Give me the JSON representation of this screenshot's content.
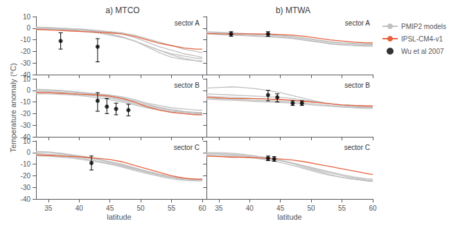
{
  "chart_data": [
    {
      "type": "line",
      "title": "a) MTCO",
      "annotation": "sector A",
      "tick_labels": "y",
      "grid": false,
      "x": [
        33,
        35,
        37,
        39,
        41,
        43,
        45,
        47,
        49,
        51,
        53,
        55,
        57,
        59,
        60
      ],
      "xlim": [
        33,
        60
      ],
      "ylim": [
        -40,
        10
      ],
      "xticks": [
        35,
        40,
        45,
        50,
        55,
        60
      ],
      "yticks": [
        -40,
        -30,
        -20,
        -10,
        0,
        10
      ],
      "series": [
        {
          "name": "PMIP2 models",
          "color": "#c0c0c0",
          "values": [
            -0.5,
            -0.5,
            -1,
            -1.5,
            -2,
            -2.5,
            -3,
            -4,
            -6,
            -9,
            -12,
            -15,
            -18,
            -20,
            -21
          ]
        },
        {
          "name": "PMIP2 models",
          "color": "#c0c0c0",
          "values": [
            0.5,
            0.5,
            0,
            -0.5,
            -1,
            -2,
            -3,
            -5,
            -8,
            -12,
            -16,
            -19,
            -22,
            -24,
            -25
          ]
        },
        {
          "name": "PMIP2 models",
          "color": "#c0c0c0",
          "values": [
            -1,
            -1,
            -1.5,
            -2,
            -3,
            -4,
            -6,
            -8,
            -11,
            -15,
            -19,
            -23,
            -26,
            -28,
            -29
          ]
        },
        {
          "name": "PMIP2 models",
          "color": "#c0c0c0",
          "values": [
            0,
            0,
            -0.5,
            -1,
            -2,
            -3.5,
            -5,
            -7.5,
            -11,
            -16,
            -21,
            -25,
            -27,
            -28,
            -28
          ]
        },
        {
          "name": "PMIP2 models",
          "color": "#c0c0c0",
          "values": [
            1,
            0.5,
            0,
            -0.5,
            -1.5,
            -3,
            -5,
            -7.5,
            -11,
            -15,
            -19,
            -22,
            -24,
            -26,
            -26
          ]
        },
        {
          "name": "IPSL-CM4-v1",
          "color": "#e8603c",
          "values": [
            -1,
            -1.5,
            -2,
            -2.5,
            -3,
            -3.5,
            -4,
            -5,
            -7,
            -10,
            -13,
            -15,
            -17,
            -18,
            -18
          ]
        },
        {
          "name": "Wu et al 2007",
          "type": "scatter",
          "marker": "circle",
          "color": "#000000",
          "x": [
            37,
            43
          ],
          "values": [
            -11,
            -16
          ],
          "error_lo": [
            7,
            13
          ],
          "error_hi": [
            7,
            7
          ]
        }
      ]
    },
    {
      "type": "line",
      "title": "b) MTWA",
      "annotation": "sector A",
      "tick_labels": false,
      "grid": false,
      "legend": "upper right",
      "x": [
        33,
        35,
        37,
        39,
        41,
        43,
        45,
        47,
        49,
        51,
        53,
        55,
        57,
        59,
        60
      ],
      "xlim": [
        33,
        60
      ],
      "ylim": [
        -40,
        10
      ],
      "xticks": [
        35,
        40,
        45,
        50,
        55,
        60
      ],
      "yticks": [
        -40,
        -30,
        -20,
        -10,
        0,
        10
      ],
      "series": [
        {
          "name": "PMIP2 models",
          "color": "#c0c0c0",
          "values": [
            -3.5,
            -4,
            -4.5,
            -5,
            -5.5,
            -6,
            -6.5,
            -7.5,
            -9,
            -10.5,
            -12,
            -13,
            -13.5,
            -14,
            -14
          ]
        },
        {
          "name": "PMIP2 models",
          "color": "#c0c0c0",
          "values": [
            -4.5,
            -5,
            -5.5,
            -6,
            -6.5,
            -7,
            -7.5,
            -8.5,
            -10,
            -11.5,
            -13,
            -14,
            -14.5,
            -15,
            -15
          ]
        },
        {
          "name": "PMIP2 models",
          "color": "#c0c0c0",
          "values": [
            -5,
            -5.5,
            -6,
            -6.5,
            -7,
            -7.5,
            -8,
            -9,
            -10.5,
            -12,
            -13.5,
            -14.5,
            -15,
            -15.5,
            -15.5
          ]
        },
        {
          "name": "PMIP2 models",
          "color": "#c0c0c0",
          "values": [
            -3,
            -3.5,
            -4,
            -4.5,
            -5,
            -5.5,
            -6,
            -7,
            -8.5,
            -10,
            -11.5,
            -12.5,
            -13,
            -13.5,
            -13.5
          ]
        },
        {
          "name": "IPSL-CM4-v1",
          "color": "#e8603c",
          "values": [
            -4.5,
            -4.8,
            -5,
            -5,
            -5,
            -5,
            -5.5,
            -6,
            -7,
            -8.5,
            -10,
            -11,
            -12,
            -12.5,
            -12.5
          ]
        },
        {
          "name": "Wu et al 2007",
          "type": "scatter",
          "marker": "circle",
          "color": "#000000",
          "x": [
            37,
            43
          ],
          "values": [
            -5,
            -5
          ],
          "error_lo": [
            2,
            2
          ],
          "error_hi": [
            2,
            2
          ]
        }
      ]
    },
    {
      "type": "line",
      "annotation": "sector B",
      "ylabel": "Temperature anomaly (°C)",
      "tick_labels": "y",
      "grid": false,
      "x": [
        33,
        35,
        37,
        39,
        41,
        43,
        45,
        47,
        49,
        51,
        53,
        55,
        57,
        59,
        60
      ],
      "xlim": [
        33,
        60
      ],
      "ylim": [
        -40,
        10
      ],
      "xticks": [
        35,
        40,
        45,
        50,
        55,
        60
      ],
      "yticks": [
        -40,
        -30,
        -20,
        -10,
        0,
        10
      ],
      "series": [
        {
          "name": "PMIP2 models",
          "color": "#c0c0c0",
          "values": [
            -1,
            -1,
            -1.5,
            -2,
            -2.5,
            -3,
            -4,
            -5.5,
            -8,
            -11,
            -13,
            -15,
            -16,
            -17,
            -17
          ]
        },
        {
          "name": "PMIP2 models",
          "color": "#c0c0c0",
          "values": [
            -2,
            -2,
            -2.5,
            -3,
            -4,
            -5,
            -6.5,
            -9,
            -11.5,
            -14,
            -16,
            -18,
            -19,
            -20,
            -20
          ]
        },
        {
          "name": "PMIP2 models",
          "color": "#c0c0c0",
          "values": [
            0,
            0,
            -0.5,
            -1,
            -2,
            -3,
            -4.5,
            -6.5,
            -9,
            -12,
            -14.5,
            -16.5,
            -18,
            -19,
            -19
          ]
        },
        {
          "name": "PMIP2 models",
          "color": "#c0c0c0",
          "values": [
            -3,
            -3,
            -3.5,
            -4,
            -5,
            -6.5,
            -8,
            -10,
            -12.5,
            -15,
            -17,
            -19,
            -20,
            -21,
            -21
          ]
        },
        {
          "name": "PMIP2 models",
          "color": "#c0c0c0",
          "values": [
            1,
            0.5,
            0,
            -1,
            -2.5,
            -4,
            -5.5,
            -8,
            -10.5,
            -13,
            -15,
            -17,
            -18.5,
            -19.5,
            -19.5
          ]
        },
        {
          "name": "IPSL-CM4-v1",
          "color": "#e8603c",
          "values": [
            -2,
            -2,
            -2.5,
            -3,
            -3.5,
            -4,
            -5,
            -7,
            -10,
            -14,
            -17,
            -19,
            -20,
            -21,
            -21
          ]
        },
        {
          "name": "Wu et al 2007",
          "type": "scatter",
          "marker": "circle",
          "color": "#000000",
          "x": [
            43,
            44.5,
            46,
            48
          ],
          "values": [
            -9,
            -14,
            -16,
            -17
          ],
          "error_lo": [
            9,
            6,
            5,
            5
          ],
          "error_hi": [
            7,
            7,
            5,
            5
          ]
        }
      ]
    },
    {
      "type": "line",
      "annotation": "sector B",
      "tick_labels": false,
      "grid": false,
      "x": [
        33,
        35,
        37,
        39,
        41,
        43,
        45,
        47,
        49,
        51,
        53,
        55,
        57,
        59,
        60
      ],
      "xlim": [
        33,
        60
      ],
      "ylim": [
        -40,
        10
      ],
      "xticks": [
        35,
        40,
        45,
        50,
        55,
        60
      ],
      "yticks": [
        -40,
        -30,
        -20,
        -10,
        0,
        10
      ],
      "series": [
        {
          "name": "PMIP2 models",
          "color": "#c0c0c0",
          "values": [
            -5,
            -5.5,
            -6,
            -6.5,
            -7,
            -7.5,
            -8,
            -8.5,
            -9.5,
            -10.5,
            -11.5,
            -12.5,
            -13,
            -13.5,
            -13.5
          ]
        },
        {
          "name": "PMIP2 models",
          "color": "#c0c0c0",
          "values": [
            -3,
            -3.5,
            -4,
            -4.5,
            -5,
            -5.5,
            -6,
            -7,
            -8.5,
            -10,
            -11.5,
            -12.5,
            -13,
            -13.5,
            -13.5
          ]
        },
        {
          "name": "PMIP2 models",
          "color": "#c0c0c0",
          "values": [
            2,
            2.5,
            3,
            2.5,
            1.5,
            0,
            -2,
            -4.5,
            -7,
            -9.5,
            -11.5,
            -13,
            -14,
            -14.5,
            -14.5
          ]
        },
        {
          "name": "PMIP2 models",
          "color": "#c0c0c0",
          "values": [
            -6.5,
            -7,
            -7.5,
            -8,
            -8.5,
            -9,
            -9.5,
            -10,
            -11,
            -12,
            -13,
            -14,
            -14.5,
            -15,
            -15
          ]
        },
        {
          "name": "PMIP2 models",
          "color": "#c0c0c0",
          "values": [
            -7.5,
            -8,
            -8.5,
            -9,
            -9.5,
            -10,
            -10.5,
            -11,
            -12,
            -13,
            -13.5,
            -14.5,
            -15,
            -15.5,
            -15.5
          ]
        },
        {
          "name": "IPSL-CM4-v1",
          "color": "#e8603c",
          "values": [
            -6,
            -6.5,
            -7,
            -7,
            -7,
            -7.5,
            -8,
            -8.5,
            -9.5,
            -10.5,
            -11.5,
            -12.5,
            -13,
            -13.5,
            -13.5
          ]
        },
        {
          "name": "Wu et al 2007",
          "type": "scatter",
          "marker": "circle",
          "color": "#000000",
          "x": [
            43,
            44.5,
            47,
            48.5
          ],
          "values": [
            -4,
            -6,
            -11,
            -11
          ],
          "error_lo": [
            5,
            4,
            2,
            2
          ],
          "error_hi": [
            4,
            3,
            2,
            2
          ]
        }
      ]
    },
    {
      "type": "line",
      "annotation": "sector C",
      "xlabel": "latitude",
      "grid": false,
      "x": [
        33,
        35,
        37,
        39,
        41,
        43,
        45,
        47,
        49,
        51,
        53,
        55,
        57,
        59,
        60
      ],
      "xlim": [
        33,
        60
      ],
      "ylim": [
        -40,
        10
      ],
      "xticks": [
        35,
        40,
        45,
        50,
        55,
        60
      ],
      "yticks": [
        -40,
        -30,
        -20,
        -10,
        0,
        10
      ],
      "series": [
        {
          "name": "PMIP2 models",
          "color": "#c0c0c0",
          "values": [
            -1,
            -1.5,
            -2,
            -3,
            -4.5,
            -6,
            -8,
            -10,
            -13,
            -16,
            -18.5,
            -21,
            -22.5,
            -23,
            -23
          ]
        },
        {
          "name": "PMIP2 models",
          "color": "#c0c0c0",
          "values": [
            -2,
            -2,
            -3,
            -4,
            -5.5,
            -7.5,
            -9.5,
            -12,
            -14.5,
            -17,
            -19,
            -21,
            -22.5,
            -23,
            -23
          ]
        },
        {
          "name": "PMIP2 models",
          "color": "#c0c0c0",
          "values": [
            0,
            0,
            -1,
            -2.5,
            -4,
            -6,
            -8.5,
            -11,
            -14,
            -17,
            -19.5,
            -21.5,
            -23,
            -23.5,
            -23.5
          ]
        },
        {
          "name": "PMIP2 models",
          "color": "#c0c0c0",
          "values": [
            -3,
            -3,
            -4,
            -5,
            -6.5,
            -8,
            -10,
            -12.5,
            -15.5,
            -18,
            -20.5,
            -22.5,
            -24,
            -24.5,
            -24.5
          ]
        },
        {
          "name": "PMIP2 models",
          "color": "#c0c0c0",
          "values": [
            1,
            0.5,
            -0.5,
            -2,
            -3.5,
            -5.5,
            -8,
            -10.5,
            -13.5,
            -16.5,
            -19,
            -21.5,
            -23,
            -23.5,
            -23.5
          ]
        },
        {
          "name": "IPSL-CM4-v1",
          "color": "#e8603c",
          "values": [
            -2,
            -2.5,
            -3,
            -3.5,
            -4,
            -5,
            -6,
            -8,
            -11,
            -14,
            -17,
            -20,
            -22,
            -23,
            -23
          ]
        },
        {
          "name": "Wu et al 2007",
          "type": "scatter",
          "marker": "circle",
          "color": "#000000",
          "x": [
            42
          ],
          "values": [
            -9
          ],
          "error_lo": [
            6
          ],
          "error_hi": [
            6
          ]
        }
      ]
    },
    {
      "type": "line",
      "annotation": "sector C",
      "xlabel": "latitude",
      "tick_labels": "x",
      "grid": false,
      "x": [
        33,
        35,
        37,
        39,
        41,
        43,
        45,
        47,
        49,
        51,
        53,
        55,
        57,
        59,
        60
      ],
      "xlim": [
        33,
        60
      ],
      "ylim": [
        -40,
        10
      ],
      "xticks": [
        35,
        40,
        45,
        50,
        55,
        60
      ],
      "yticks": [
        -40,
        -30,
        -20,
        -10,
        0,
        10
      ],
      "series": [
        {
          "name": "PMIP2 models",
          "color": "#c0c0c0",
          "values": [
            -2,
            -2,
            -2.5,
            -3,
            -4,
            -5.5,
            -7,
            -9,
            -11.5,
            -14,
            -16.5,
            -19,
            -21,
            -22.5,
            -23
          ]
        },
        {
          "name": "PMIP2 models",
          "color": "#c0c0c0",
          "values": [
            -1,
            -1,
            -1.5,
            -2,
            -3,
            -4.5,
            -6.5,
            -9,
            -12,
            -15,
            -17.5,
            -20,
            -22,
            -23.5,
            -24
          ]
        },
        {
          "name": "PMIP2 models",
          "color": "#c0c0c0",
          "values": [
            -3,
            -3,
            -3.5,
            -4,
            -5,
            -6.5,
            -8.5,
            -11,
            -14,
            -17,
            -19.5,
            -21.5,
            -23,
            -24,
            -24.5
          ]
        },
        {
          "name": "PMIP2 models",
          "color": "#c0c0c0",
          "values": [
            0,
            0,
            -0.5,
            -1.5,
            -3,
            -5,
            -7,
            -9.5,
            -13,
            -16,
            -19,
            -21.5,
            -23,
            -24.5,
            -25
          ]
        },
        {
          "name": "IPSL-CM4-v1",
          "color": "#e8603c",
          "values": [
            -3,
            -3.5,
            -4,
            -4,
            -4.5,
            -5,
            -5.5,
            -6.5,
            -8,
            -10,
            -12,
            -14,
            -16,
            -18,
            -19
          ]
        },
        {
          "name": "Wu et al 2007",
          "type": "scatter",
          "marker": "circle",
          "color": "#000000",
          "x": [
            43,
            44
          ],
          "values": [
            -5,
            -5.5
          ],
          "error_lo": [
            2,
            2
          ],
          "error_hi": [
            2,
            2
          ]
        }
      ]
    }
  ]
}
